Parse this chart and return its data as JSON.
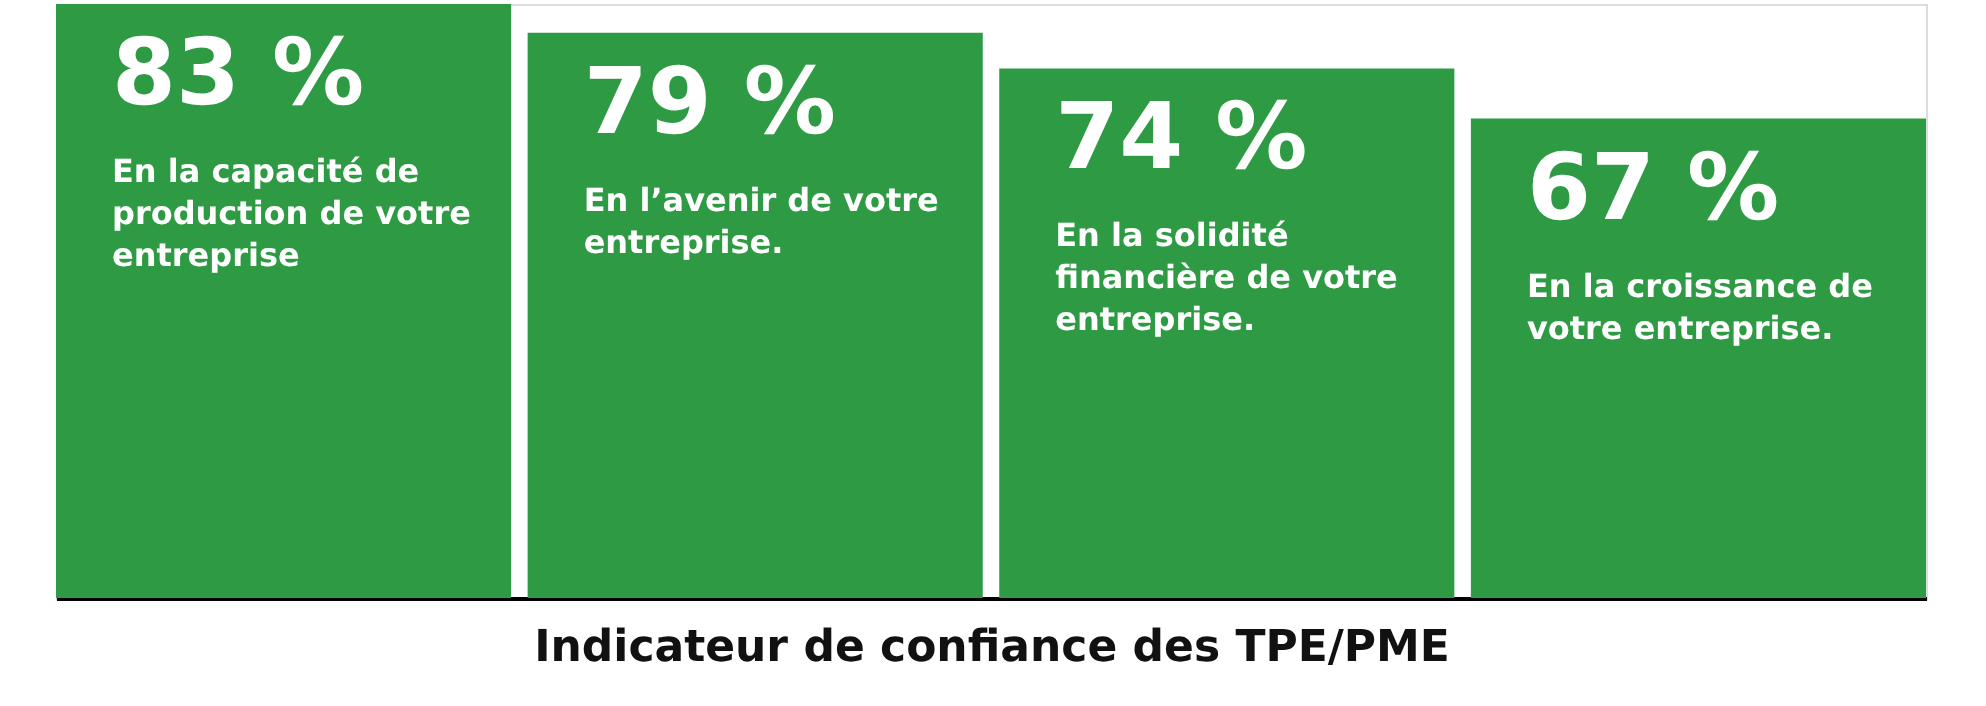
{
  "chart_data": {
    "type": "bar",
    "xlabel": "Indicateur de confiance des TPE/PME",
    "categories": [
      "En la capacité de production de votre entreprise",
      "En l’avenir de votre entreprise.",
      "En la solidité financière de votre entreprise.",
      "En la croissance de votre entreprise."
    ],
    "values": [
      83,
      79,
      74,
      67
    ],
    "value_labels": [
      "83 %",
      "79 %",
      "74 %",
      "67 %"
    ],
    "color": "#2e9b44"
  }
}
